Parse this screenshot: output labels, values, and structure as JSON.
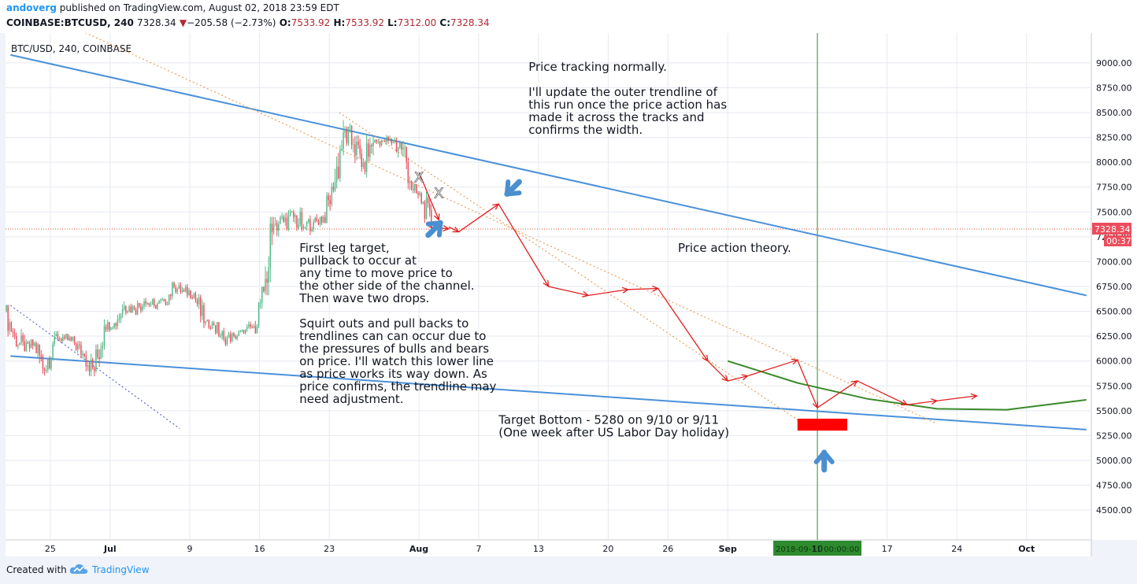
{
  "header": {
    "author": "andoverg",
    "published_text": " published on TradingView.com, August 02, 2018 23:59 EDT",
    "symbol": "COINBASE:BTCUSD, 240",
    "last": "7328.34",
    "change": "−205.58 (−2.73%)",
    "o_label": "O:",
    "o": "7533.92",
    "h_label": "H:",
    "h": "7533.92",
    "l_label": "L:",
    "l": "7312.00",
    "c_label": "C:",
    "c": "7328.34"
  },
  "footer": {
    "created_with": "Created with",
    "brand": "TradingView"
  },
  "chart_data": {
    "type": "candlestick",
    "title": "BTC/USD, 240, COINBASE",
    "ylim": [
      4200,
      9300
    ],
    "x_range": [
      "2018-06-21",
      "2018-10-07"
    ],
    "y_ticks": [
      4500,
      4750,
      5000,
      5250,
      5500,
      5750,
      6000,
      6250,
      6500,
      6750,
      7000,
      7250,
      7500,
      7750,
      8000,
      8250,
      8500,
      8750,
      9000
    ],
    "y_tick_labels": [
      "4500.00",
      "4750.00",
      "5000.00",
      "5250.00",
      "5500.00",
      "5750.00",
      "6000.00",
      "6250.00",
      "6500.00",
      "6750.00",
      "7000.00",
      "7250.00",
      "7500.00",
      "7750.00",
      "8000.00",
      "8250.00",
      "8500.00",
      "8750.00",
      "9000.00"
    ],
    "x_ticks": [
      {
        "date": "2018-06-25",
        "label": "25"
      },
      {
        "date": "2018-07-01",
        "label": "Jul"
      },
      {
        "date": "2018-07-09",
        "label": "9"
      },
      {
        "date": "2018-07-16",
        "label": "16"
      },
      {
        "date": "2018-07-23",
        "label": "23"
      },
      {
        "date": "2018-08-01",
        "label": "Aug"
      },
      {
        "date": "2018-08-07",
        "label": "7"
      },
      {
        "date": "2018-08-13",
        "label": "13"
      },
      {
        "date": "2018-08-20",
        "label": "20"
      },
      {
        "date": "2018-08-26",
        "label": "26"
      },
      {
        "date": "2018-09-01",
        "label": "Sep"
      },
      {
        "date": "2018-09-10",
        "label": "10"
      },
      {
        "date": "2018-09-17",
        "label": "17"
      },
      {
        "date": "2018-09-24",
        "label": "24"
      },
      {
        "date": "2018-10-01",
        "label": "Oct"
      }
    ],
    "daily_ohlc": [
      {
        "d": "2018-06-21",
        "o": 6500,
        "h": 6560,
        "l": 6200,
        "c": 6250
      },
      {
        "d": "2018-06-22",
        "o": 6250,
        "h": 6330,
        "l": 6000,
        "c": 6100
      },
      {
        "d": "2018-06-23",
        "o": 6100,
        "h": 6260,
        "l": 6050,
        "c": 6180
      },
      {
        "d": "2018-06-24",
        "o": 6180,
        "h": 6220,
        "l": 5780,
        "c": 5900
      },
      {
        "d": "2018-06-25",
        "o": 5900,
        "h": 6300,
        "l": 5880,
        "c": 6250
      },
      {
        "d": "2018-06-26",
        "o": 6250,
        "h": 6320,
        "l": 6150,
        "c": 6230
      },
      {
        "d": "2018-06-27",
        "o": 6230,
        "h": 6260,
        "l": 6080,
        "c": 6180
      },
      {
        "d": "2018-06-28",
        "o": 6180,
        "h": 6220,
        "l": 6000,
        "c": 6050
      },
      {
        "d": "2018-06-29",
        "o": 6050,
        "h": 6120,
        "l": 5820,
        "c": 5900
      },
      {
        "d": "2018-06-30",
        "o": 5900,
        "h": 6420,
        "l": 5880,
        "c": 6350
      },
      {
        "d": "2018-07-01",
        "o": 6350,
        "h": 6420,
        "l": 6280,
        "c": 6380
      },
      {
        "d": "2018-07-02",
        "o": 6380,
        "h": 6600,
        "l": 6300,
        "c": 6550
      },
      {
        "d": "2018-07-03",
        "o": 6550,
        "h": 6620,
        "l": 6440,
        "c": 6520
      },
      {
        "d": "2018-07-04",
        "o": 6520,
        "h": 6700,
        "l": 6480,
        "c": 6600
      },
      {
        "d": "2018-07-05",
        "o": 6600,
        "h": 6680,
        "l": 6500,
        "c": 6560
      },
      {
        "d": "2018-07-06",
        "o": 6560,
        "h": 6640,
        "l": 6480,
        "c": 6600
      },
      {
        "d": "2018-07-07",
        "o": 6600,
        "h": 6800,
        "l": 6560,
        "c": 6740
      },
      {
        "d": "2018-07-08",
        "o": 6740,
        "h": 6820,
        "l": 6660,
        "c": 6700
      },
      {
        "d": "2018-07-09",
        "o": 6700,
        "h": 6780,
        "l": 6620,
        "c": 6680
      },
      {
        "d": "2018-07-10",
        "o": 6680,
        "h": 6700,
        "l": 6320,
        "c": 6380
      },
      {
        "d": "2018-07-11",
        "o": 6380,
        "h": 6420,
        "l": 6300,
        "c": 6360
      },
      {
        "d": "2018-07-12",
        "o": 6360,
        "h": 6380,
        "l": 6120,
        "c": 6220
      },
      {
        "d": "2018-07-13",
        "o": 6220,
        "h": 6320,
        "l": 6150,
        "c": 6250
      },
      {
        "d": "2018-07-14",
        "o": 6250,
        "h": 6320,
        "l": 6180,
        "c": 6280
      },
      {
        "d": "2018-07-15",
        "o": 6280,
        "h": 6400,
        "l": 6220,
        "c": 6350
      },
      {
        "d": "2018-07-16",
        "o": 6350,
        "h": 6720,
        "l": 6330,
        "c": 6700
      },
      {
        "d": "2018-07-17",
        "o": 6700,
        "h": 7450,
        "l": 6650,
        "c": 7380
      },
      {
        "d": "2018-07-18",
        "o": 7380,
        "h": 7580,
        "l": 7250,
        "c": 7400
      },
      {
        "d": "2018-07-19",
        "o": 7400,
        "h": 7560,
        "l": 7280,
        "c": 7450
      },
      {
        "d": "2018-07-20",
        "o": 7450,
        "h": 7650,
        "l": 7300,
        "c": 7350
      },
      {
        "d": "2018-07-21",
        "o": 7350,
        "h": 7470,
        "l": 7250,
        "c": 7400
      },
      {
        "d": "2018-07-22",
        "o": 7400,
        "h": 7560,
        "l": 7350,
        "c": 7450
      },
      {
        "d": "2018-07-23",
        "o": 7450,
        "h": 7800,
        "l": 7420,
        "c": 7720
      },
      {
        "d": "2018-07-24",
        "o": 7720,
        "h": 8450,
        "l": 7700,
        "c": 8300
      },
      {
        "d": "2018-07-25",
        "o": 8300,
        "h": 8480,
        "l": 8050,
        "c": 8180
      },
      {
        "d": "2018-07-26",
        "o": 8180,
        "h": 8300,
        "l": 7900,
        "c": 8000
      },
      {
        "d": "2018-07-27",
        "o": 8000,
        "h": 8280,
        "l": 7800,
        "c": 8200
      },
      {
        "d": "2018-07-28",
        "o": 8200,
        "h": 8240,
        "l": 8100,
        "c": 8220
      },
      {
        "d": "2018-07-29",
        "o": 8220,
        "h": 8290,
        "l": 8120,
        "c": 8200
      },
      {
        "d": "2018-07-30",
        "o": 8200,
        "h": 8250,
        "l": 7850,
        "c": 8150
      },
      {
        "d": "2018-07-31",
        "o": 8150,
        "h": 8180,
        "l": 7650,
        "c": 7720
      },
      {
        "d": "2018-08-01",
        "o": 7720,
        "h": 7760,
        "l": 7500,
        "c": 7600
      },
      {
        "d": "2018-08-02",
        "o": 7600,
        "h": 7700,
        "l": 7312,
        "c": 7328
      }
    ],
    "current_price": 7328.34,
    "current_price_label": "7328.34",
    "countdown_label": "00:37",
    "trendlines": [
      {
        "name": "upper-trendline",
        "color": "#4a90d9",
        "from": {
          "d": "2018-06-21",
          "v": 9080
        },
        "to": {
          "d": "2018-10-07",
          "v": 6660
        }
      },
      {
        "name": "lower-trendline",
        "color": "#4a90d9",
        "from": {
          "d": "2018-06-21",
          "v": 6050
        },
        "to": {
          "d": "2018-10-07",
          "v": 5310
        }
      },
      {
        "name": "channel-upper-dotted",
        "color": "#e8a05a",
        "from": {
          "d": "2018-06-26",
          "v": 9420
        },
        "to": {
          "d": "2018-09-22",
          "v": 5370
        }
      },
      {
        "name": "channel-lower-dotted",
        "color": "#e8a05a",
        "from": {
          "d": "2018-07-24",
          "v": 8500
        },
        "to": {
          "d": "2018-09-09",
          "v": 5340
        }
      },
      {
        "name": "old-blue-dotted",
        "color": "#5a6ac9",
        "from": {
          "d": "2018-06-21",
          "v": 6560
        },
        "to": {
          "d": "2018-07-08",
          "v": 5320
        }
      }
    ],
    "curve": {
      "color": "#3a8a2a",
      "points": [
        {
          "d": "2018-09-01",
          "v": 6000
        },
        {
          "d": "2018-09-08",
          "v": 5780
        },
        {
          "d": "2018-09-15",
          "v": 5620
        },
        {
          "d": "2018-09-22",
          "v": 5520
        },
        {
          "d": "2018-09-29",
          "v": 5510
        },
        {
          "d": "2018-10-07",
          "v": 5610
        }
      ]
    },
    "projection_path": [
      {
        "d": "2018-08-04",
        "v": 7350
      },
      {
        "d": "2018-08-05",
        "v": 7300
      },
      {
        "d": "2018-08-09",
        "v": 7580
      },
      {
        "d": "2018-08-14",
        "v": 6750
      },
      {
        "d": "2018-08-18",
        "v": 6660
      },
      {
        "d": "2018-08-22",
        "v": 6720
      },
      {
        "d": "2018-08-25",
        "v": 6730
      },
      {
        "d": "2018-08-30",
        "v": 6000
      },
      {
        "d": "2018-09-01",
        "v": 5800
      },
      {
        "d": "2018-09-03",
        "v": 5850
      },
      {
        "d": "2018-09-08",
        "v": 6010
      },
      {
        "d": "2018-09-10",
        "v": 5530
      },
      {
        "d": "2018-09-14",
        "v": 5800
      },
      {
        "d": "2018-09-19",
        "v": 5560
      },
      {
        "d": "2018-09-22",
        "v": 5600
      },
      {
        "d": "2018-09-26",
        "v": 5650
      }
    ],
    "projection_color": "#e02020",
    "initial_arrows": [
      [
        {
          "d": "2018-08-01",
          "v": 7900
        },
        {
          "d": "2018-08-03",
          "v": 7420
        }
      ],
      [
        {
          "d": "2018-08-02",
          "v": 7350
        },
        {
          "d": "2018-08-04",
          "v": 7330
        }
      ]
    ],
    "x_marks": [
      {
        "label": "X",
        "d": "2018-08-01",
        "v": 7800
      },
      {
        "label": "X",
        "d": "2018-08-03",
        "v": 7640
      }
    ],
    "target_marker": {
      "d_from": "2018-09-08",
      "d_to": "2018-09-13",
      "v_top": 5420,
      "v_bottom": 5300,
      "color": "#ff0000"
    },
    "vertical_line": {
      "d": "2018-09-10",
      "color": "#2f8f2f"
    },
    "vertical_label": "2018-09-11 00:00:00",
    "annotations": [
      {
        "name": "annotation-tracking",
        "lines": [
          "Price tracking normally.",
          "",
          "I'll update the outer trendline of",
          "this run once the price action has",
          "made it across the tracks and",
          "confirms the width."
        ],
        "d": "2018-08-12",
        "v": 8920
      },
      {
        "name": "annotation-first-leg",
        "lines": [
          "First leg target,",
          "pullback to occur at",
          "any time to move price to",
          "the other side of the channel.",
          "Then wave two drops.",
          "",
          "Squirt outs and pull backs to",
          "trendlines can can occur due to",
          "the pressures of bulls and bears",
          "on price. I'll watch this lower line",
          "as price works its way down. As",
          "price confirms, the trendline may",
          "need adjustment."
        ],
        "d": "2018-07-20",
        "v": 7100
      },
      {
        "name": "annotation-theory",
        "lines": [
          "Price action theory."
        ],
        "d": "2018-08-27",
        "v": 7100
      },
      {
        "name": "annotation-target",
        "lines": [
          "Target Bottom - 5280 on 9/10 or 9/11",
          "(One week after US Labor Day holiday)"
        ],
        "d": "2018-08-09",
        "v": 5370
      }
    ],
    "colors": {
      "up": "#53b987",
      "down": "#eb4d5c",
      "grid": "#e6e9f0",
      "axis_text": "#131722",
      "price_line": "#e0543a",
      "price_label_bg": "#eb4d5c",
      "blue_arrow": "#4a8fd0"
    }
  }
}
